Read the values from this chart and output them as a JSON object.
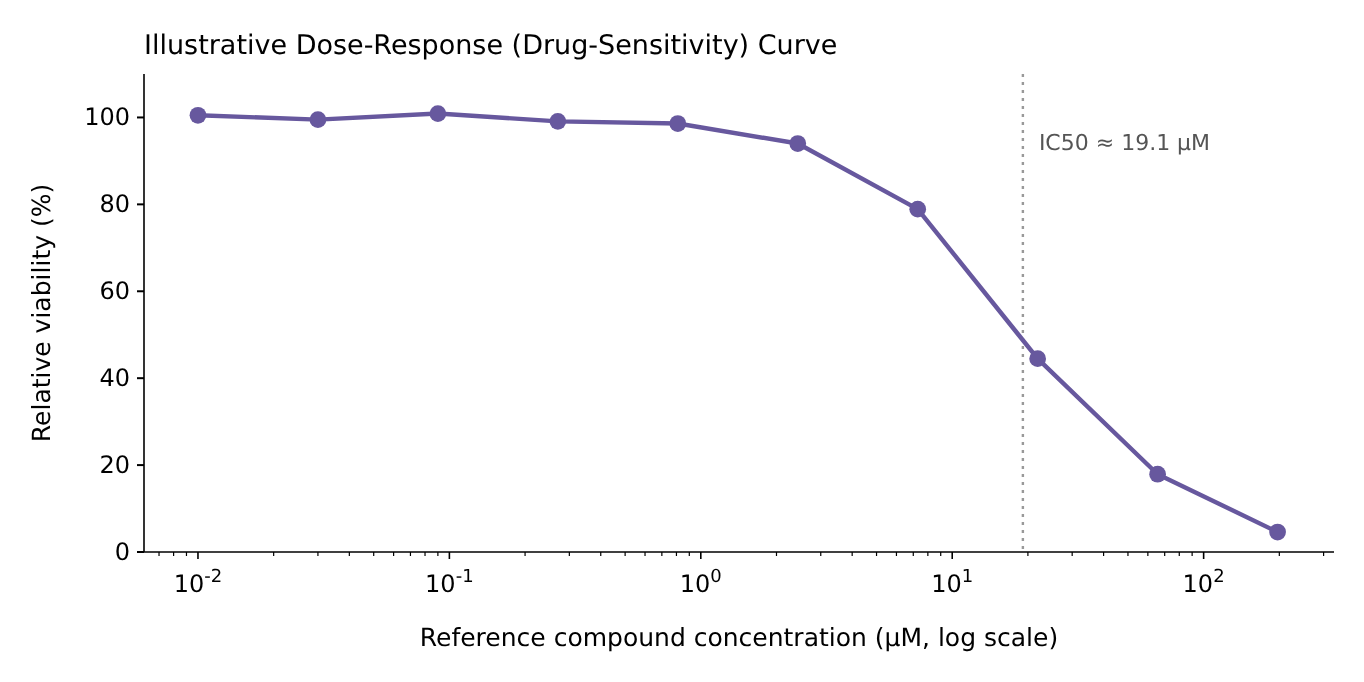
{
  "chart_data": {
    "type": "line",
    "title": "Illustrative Dose-Response (Drug-Sensitivity) Curve",
    "xlabel": "Reference compound concentration (µM, log scale)",
    "ylabel": "Relative viability (%)",
    "x": [
      0.01,
      0.03,
      0.09,
      0.27,
      0.81,
      2.43,
      7.29,
      21.87,
      65.61,
      196.83
    ],
    "series": [
      {
        "color": "#67589e",
        "values": [
          100.5,
          99.5,
          100.9,
          99.1,
          98.6,
          94.0,
          78.9,
          44.5,
          17.9,
          4.6
        ]
      }
    ],
    "log": "x",
    "marker": "circle",
    "line_style": "solid",
    "xlim": [
      0.0061,
      330
    ],
    "ylim": [
      0,
      110
    ],
    "xticks": [
      {
        "value": 0.007,
        "label": null
      },
      {
        "value": 0.008,
        "label": null
      },
      {
        "value": 0.009,
        "label": null
      },
      {
        "value": 0.01,
        "label": "10$^{-2}$"
      },
      {
        "value": 0.02,
        "label": null
      },
      {
        "value": 0.03,
        "label": null
      },
      {
        "value": 0.04,
        "label": null
      },
      {
        "value": 0.05,
        "label": null
      },
      {
        "value": 0.06,
        "label": null
      },
      {
        "value": 0.07,
        "label": null
      },
      {
        "value": 0.08,
        "label": null
      },
      {
        "value": 0.09,
        "label": null
      },
      {
        "value": 0.1,
        "label": "10$^{-1}$"
      },
      {
        "value": 0.2,
        "label": null
      },
      {
        "value": 0.3,
        "label": null
      },
      {
        "value": 0.4,
        "label": null
      },
      {
        "value": 0.5,
        "label": null
      },
      {
        "value": 0.6,
        "label": null
      },
      {
        "value": 0.7,
        "label": null
      },
      {
        "value": 0.8,
        "label": null
      },
      {
        "value": 0.9,
        "label": null
      },
      {
        "value": 1,
        "label": "10$^{0}$"
      },
      {
        "value": 2,
        "label": null
      },
      {
        "value": 3,
        "label": null
      },
      {
        "value": 4,
        "label": null
      },
      {
        "value": 5,
        "label": null
      },
      {
        "value": 6,
        "label": null
      },
      {
        "value": 7,
        "label": null
      },
      {
        "value": 8,
        "label": null
      },
      {
        "value": 9,
        "label": null
      },
      {
        "value": 10,
        "label": "10$^{1}$"
      },
      {
        "value": 20,
        "label": null
      },
      {
        "value": 30,
        "label": null
      },
      {
        "value": 40,
        "label": null
      },
      {
        "value": 50,
        "label": null
      },
      {
        "value": 60,
        "label": null
      },
      {
        "value": 70,
        "label": null
      },
      {
        "value": 80,
        "label": null
      },
      {
        "value": 90,
        "label": null
      },
      {
        "value": 100,
        "label": "10$^{2}$"
      },
      {
        "value": 200,
        "label": null
      },
      {
        "value": 300,
        "label": null
      }
    ],
    "yticks": [
      0,
      20,
      40,
      60,
      80,
      100
    ],
    "ref_lines": [
      {
        "axis": "x",
        "value": 19.1,
        "label": "IC50 ≈ 19.1 µM",
        "color": "#999999",
        "line_style": "dotted"
      }
    ]
  }
}
